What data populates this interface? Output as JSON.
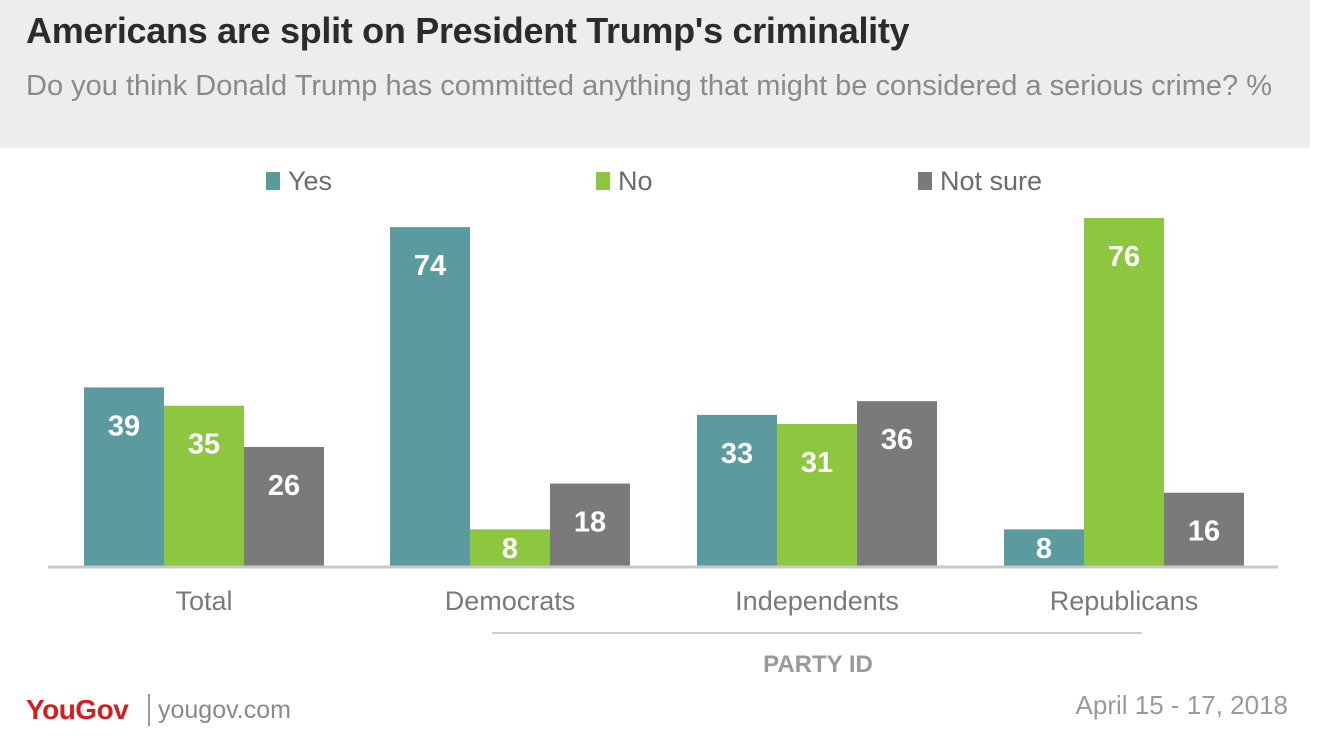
{
  "header": {
    "title": "Americans are split on President Trump's criminality",
    "subtitle": "Do you think Donald Trump has committed anything that might be considered a serious crime? %"
  },
  "chart_data": {
    "type": "bar",
    "categories": [
      "Total",
      "Democrats",
      "Independents",
      "Republicans"
    ],
    "series": [
      {
        "name": "Yes",
        "color": "#5b9a9e",
        "values": [
          39,
          74,
          33,
          8
        ]
      },
      {
        "name": "No",
        "color": "#8dc63f",
        "values": [
          35,
          8,
          31,
          76
        ]
      },
      {
        "name": "Not sure",
        "color": "#7a7a7a",
        "values": [
          26,
          18,
          36,
          16
        ]
      }
    ],
    "ylim": [
      0,
      76
    ],
    "group_label": "PARTY ID",
    "legend_position": "top",
    "grid": false
  },
  "footer": {
    "brand": "YouGov",
    "site": "yougov.com",
    "date": "April 15 - 17, 2018"
  }
}
